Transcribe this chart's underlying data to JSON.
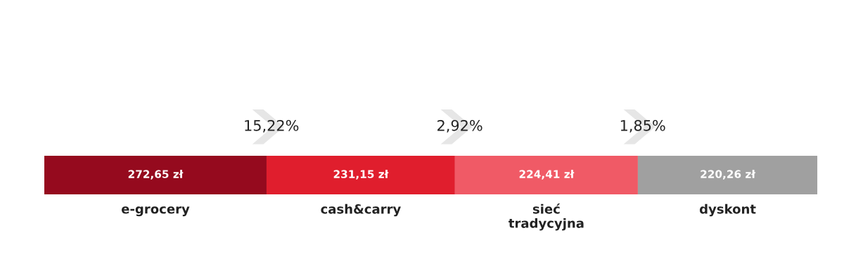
{
  "chart_data": {
    "type": "bar",
    "orientation": "horizontal",
    "stacked": true,
    "categories": [
      null
    ],
    "series": [
      {
        "name": "e-grocery",
        "color": "#950a1e",
        "values": [
          272.65
        ],
        "value_labels": [
          "272,65 zł"
        ]
      },
      {
        "name": "cash&carry",
        "color": "#e01e2d",
        "values": [
          231.15
        ],
        "value_labels": [
          "231,15 zł"
        ]
      },
      {
        "name": "sieć\ntradycyjna",
        "color": "#f05a66",
        "values": [
          224.41
        ],
        "value_labels": [
          "224,41 zł"
        ]
      },
      {
        "name": "dyskont",
        "color": "#a0a0a0",
        "values": [
          220.26
        ],
        "value_labels": [
          "220,26 zł"
        ]
      }
    ],
    "annotations": [
      "15,22%",
      "2,92%",
      "1,85%"
    ],
    "tick_labels": false,
    "legend": false
  }
}
